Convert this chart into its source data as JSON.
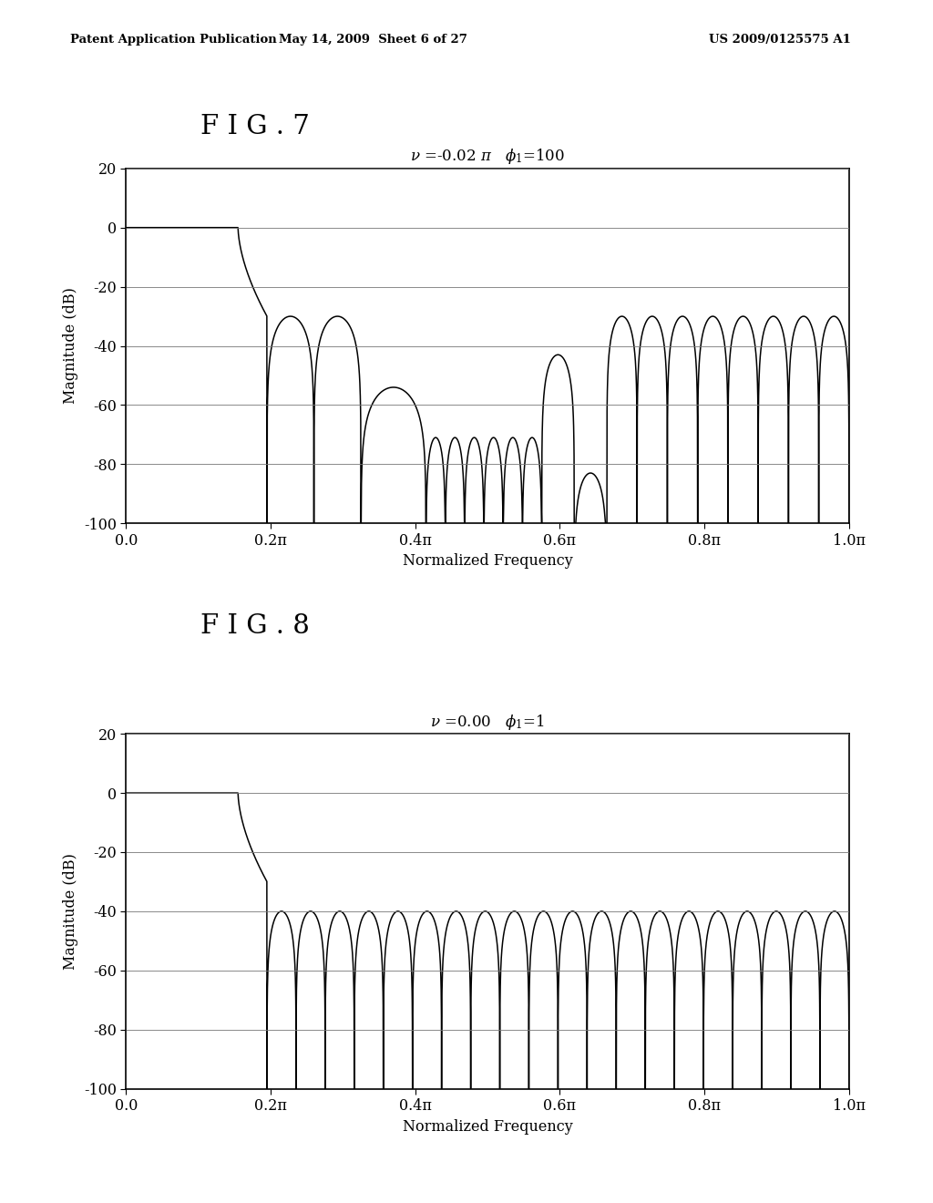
{
  "fig7_title": "F I G . 7",
  "fig8_title": "F I G . 8",
  "ylabel": "Magnitude (dB)",
  "xlabel": "Normalized Frequency",
  "ylim": [
    -100,
    20
  ],
  "yticks": [
    -100,
    -80,
    -60,
    -40,
    -20,
    0,
    20
  ],
  "xticks": [
    0.0,
    0.2,
    0.4,
    0.6,
    0.8,
    1.0
  ],
  "xticklabels": [
    "0.0",
    "0.2π",
    "0.4π",
    "0.6π",
    "0.8π",
    "1.0π"
  ],
  "header_left": "Patent Application Publication",
  "header_mid": "May 14, 2009  Sheet 6 of 27",
  "header_right": "US 2009/0125575 A1",
  "line_color": "#000000",
  "bg_color": "#ffffff",
  "fig7_sub": "$\\nu$ =-0.02 $\\pi$   $\\phi_1$=100",
  "fig8_sub": "$\\nu$ =0.00   $\\phi_1$=1"
}
